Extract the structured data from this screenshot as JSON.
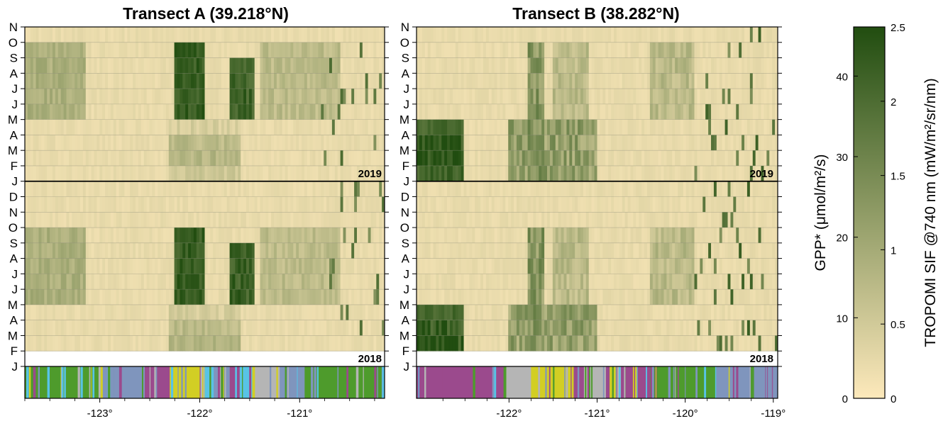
{
  "chart_data": [
    {
      "type": "heatmap",
      "title": "Transect A (39.218°N)",
      "x_ticks": [
        -123,
        -122,
        -121
      ],
      "x_tick_labels": [
        "-123°",
        "-122°",
        "-121°"
      ],
      "xlim": [
        -123.75,
        -120.15
      ],
      "year_labels": [
        "2019",
        "2018"
      ],
      "month_labels": [
        "N",
        "O",
        "S",
        "A",
        "J",
        "J",
        "M",
        "A",
        "M",
        "F",
        "J",
        "D",
        "N",
        "O",
        "S",
        "A",
        "J",
        "J",
        "M",
        "A",
        "M",
        "F",
        "J"
      ],
      "data_starts_at_month_index": 21,
      "high_sif_blocks": [
        {
          "lon": [
            -122.25,
            -121.95
          ],
          "months": [
            "Jun 2018 – Sep 2018",
            "Jun 2019 – Sep 2019"
          ],
          "level": "high"
        },
        {
          "lon": [
            -121.7,
            -121.45
          ],
          "months": [
            "Jun 2018 – Oct 2018",
            "Jun 2019 – Oct 2019"
          ],
          "level": "high"
        }
      ],
      "landcover_strip": [
        {
          "lon": [
            -123.75,
            -123.0
          ],
          "class": "green"
        },
        {
          "lon": [
            -123.0,
            -122.55
          ],
          "class": "blue"
        },
        {
          "lon": [
            -122.55,
            -122.3
          ],
          "class": "purple"
        },
        {
          "lon": [
            -122.3,
            -121.95
          ],
          "class": "yellow"
        },
        {
          "lon": [
            -121.95,
            -121.85
          ],
          "class": "cyan"
        },
        {
          "lon": [
            -121.85,
            -121.7
          ],
          "class": "blue"
        },
        {
          "lon": [
            -121.7,
            -121.6
          ],
          "class": "purple"
        },
        {
          "lon": [
            -121.6,
            -121.45
          ],
          "class": "cyan"
        },
        {
          "lon": [
            -121.45,
            -121.2
          ],
          "class": "gray"
        },
        {
          "lon": [
            -121.2,
            -120.95
          ],
          "class": "blue"
        },
        {
          "lon": [
            -120.95,
            -120.15
          ],
          "class": "green"
        }
      ]
    },
    {
      "type": "heatmap",
      "title": "Transect B (38.282°N)",
      "x_ticks": [
        -122,
        -121,
        -120,
        -119
      ],
      "x_tick_labels": [
        "-122°",
        "-121°",
        "-120°",
        "-119°"
      ],
      "xlim": [
        -123.05,
        -118.95
      ],
      "year_labels": [
        "2019",
        "2018"
      ],
      "month_labels": [
        "N",
        "O",
        "S",
        "A",
        "J",
        "J",
        "M",
        "A",
        "M",
        "F",
        "J",
        "D",
        "N",
        "O",
        "S",
        "A",
        "J",
        "J",
        "M",
        "A",
        "M",
        "F",
        "J"
      ],
      "data_starts_at_month_index": 21,
      "high_sif_blocks": [
        {
          "lon": [
            -123.05,
            -122.5
          ],
          "months": [
            "Mar 2018 – Apr 2018",
            "Feb 2019 – Apr 2019"
          ],
          "level": "high"
        },
        {
          "lon": [
            -121.8,
            -121.6
          ],
          "months": [
            "Mar 2018 – Oct 2018",
            "Mar 2019 – Oct 2019"
          ],
          "level": "medium"
        },
        {
          "lon": [
            -120.4,
            -119.9
          ],
          "months": [
            "May 2018 – Aug 2018",
            "May 2019 – Aug 2019"
          ],
          "level": "low"
        }
      ],
      "landcover_strip": [
        {
          "lon": [
            -123.05,
            -122.05
          ],
          "class": "purple"
        },
        {
          "lon": [
            -122.05,
            -121.75
          ],
          "class": "gray"
        },
        {
          "lon": [
            -121.75,
            -121.3
          ],
          "class": "yellow"
        },
        {
          "lon": [
            -121.3,
            -121.15
          ],
          "class": "purple"
        },
        {
          "lon": [
            -121.15,
            -120.9
          ],
          "class": "gray"
        },
        {
          "lon": [
            -120.9,
            -120.4
          ],
          "class": "purple"
        },
        {
          "lon": [
            -120.4,
            -119.65
          ],
          "class": "green"
        },
        {
          "lon": [
            -119.65,
            -118.95
          ],
          "class": "blue"
        }
      ]
    },
    {
      "type": "colorbar",
      "left_label": "GPP* (μmol/m²/s)",
      "right_label": "TROPOMI SIF @740 nm (mW/m²/sr/nm)",
      "left_ticks": [
        0,
        10,
        20,
        30,
        40
      ],
      "right_ticks": [
        0,
        0.5,
        1,
        1.5,
        2,
        2.5
      ],
      "right_tick_labels": [
        "0",
        "0.5",
        "1",
        "1.5",
        "2",
        "2.5"
      ],
      "range_sif": [
        0,
        2.5
      ],
      "range_gpp": [
        0,
        46.1
      ],
      "colors": {
        "low": "#fde9bb",
        "high": "#214d10"
      }
    }
  ],
  "colors": {
    "sif_low": "#fde9bb",
    "sif_high": "#214d10",
    "green": "#4e9b2c",
    "blue": "#7f95bd",
    "purple": "#9b4a8d",
    "yellow": "#d2ce24",
    "cyan": "#58c3e6",
    "gray": "#b5b5b5"
  }
}
